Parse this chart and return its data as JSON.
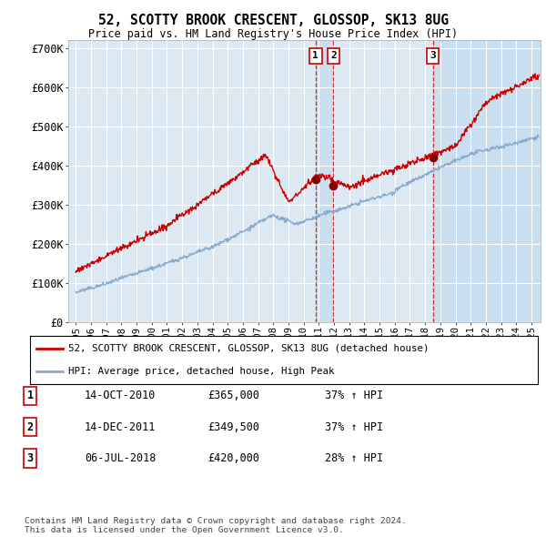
{
  "title": "52, SCOTTY BROOK CRESCENT, GLOSSOP, SK13 8UG",
  "subtitle": "Price paid vs. HM Land Registry's House Price Index (HPI)",
  "ylim": [
    0,
    720000
  ],
  "yticks": [
    0,
    100000,
    200000,
    300000,
    400000,
    500000,
    600000,
    700000
  ],
  "ytick_labels": [
    "£0",
    "£100K",
    "£200K",
    "£300K",
    "£400K",
    "£500K",
    "£600K",
    "£700K"
  ],
  "xlim_start": 1994.5,
  "xlim_end": 2025.6,
  "transaction_color": "#cc0000",
  "hpi_color": "#88aacc",
  "chart_bg": "#dce8f2",
  "shade_color": "#c5ddf0",
  "transactions": [
    {
      "date": 2010.79,
      "price": 365000,
      "label": "1"
    },
    {
      "date": 2011.96,
      "price": 349500,
      "label": "2"
    },
    {
      "date": 2018.51,
      "price": 420000,
      "label": "3"
    }
  ],
  "legend_line1": "52, SCOTTY BROOK CRESCENT, GLOSSOP, SK13 8UG (detached house)",
  "legend_line2": "HPI: Average price, detached house, High Peak",
  "table_rows": [
    {
      "num": "1",
      "date": "14-OCT-2010",
      "price": "£365,000",
      "change": "37% ↑ HPI"
    },
    {
      "num": "2",
      "date": "14-DEC-2011",
      "price": "£349,500",
      "change": "37% ↑ HPI"
    },
    {
      "num": "3",
      "date": "06-JUL-2018",
      "price": "£420,000",
      "change": "28% ↑ HPI"
    }
  ],
  "footer_line1": "Contains HM Land Registry data © Crown copyright and database right 2024.",
  "footer_line2": "This data is licensed under the Open Government Licence v3.0."
}
